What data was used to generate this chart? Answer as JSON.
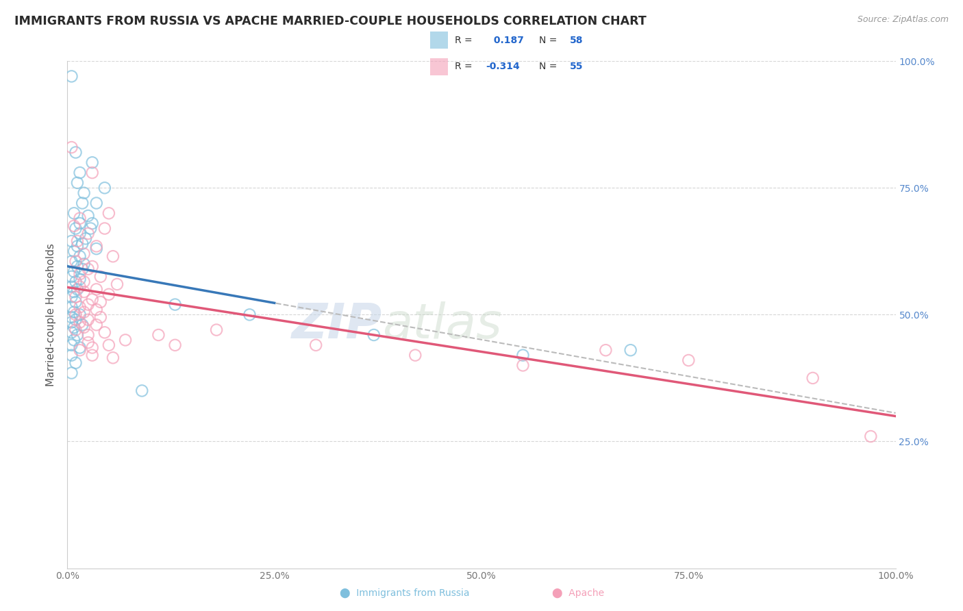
{
  "title": "IMMIGRANTS FROM RUSSIA VS APACHE MARRIED-COUPLE HOUSEHOLDS CORRELATION CHART",
  "source_text": "Source: ZipAtlas.com",
  "xlabel_bottom": "Immigrants from Russia",
  "xlabel_bottom2": "Apache",
  "ylabel": "Married-couple Households",
  "R_blue": 0.187,
  "N_blue": 58,
  "R_pink": -0.314,
  "N_pink": 55,
  "blue_color": "#7fbfdd",
  "pink_color": "#f4a0b8",
  "blue_line_color": "#3878b8",
  "pink_line_color": "#e05878",
  "blue_scatter": [
    [
      0.5,
      97.0
    ],
    [
      1.0,
      82.0
    ],
    [
      3.0,
      80.0
    ],
    [
      1.5,
      78.0
    ],
    [
      1.2,
      76.0
    ],
    [
      4.5,
      75.0
    ],
    [
      2.0,
      74.0
    ],
    [
      1.8,
      72.0
    ],
    [
      3.5,
      72.0
    ],
    [
      0.8,
      70.0
    ],
    [
      2.5,
      69.5
    ],
    [
      1.5,
      68.0
    ],
    [
      3.0,
      68.0
    ],
    [
      1.0,
      67.0
    ],
    [
      2.8,
      67.0
    ],
    [
      1.5,
      66.0
    ],
    [
      2.2,
      65.0
    ],
    [
      0.5,
      64.5
    ],
    [
      1.8,
      64.0
    ],
    [
      1.2,
      63.5
    ],
    [
      3.5,
      63.0
    ],
    [
      0.8,
      62.5
    ],
    [
      1.5,
      61.5
    ],
    [
      0.5,
      60.5
    ],
    [
      2.0,
      60.0
    ],
    [
      1.2,
      59.5
    ],
    [
      1.8,
      59.0
    ],
    [
      0.8,
      58.5
    ],
    [
      0.5,
      57.5
    ],
    [
      1.5,
      57.0
    ],
    [
      1.0,
      56.5
    ],
    [
      0.5,
      55.5
    ],
    [
      1.2,
      55.0
    ],
    [
      0.8,
      54.5
    ],
    [
      0.5,
      53.5
    ],
    [
      1.0,
      52.5
    ],
    [
      0.5,
      51.5
    ],
    [
      0.8,
      50.5
    ],
    [
      1.5,
      50.0
    ],
    [
      0.5,
      49.5
    ],
    [
      1.0,
      49.0
    ],
    [
      0.5,
      48.5
    ],
    [
      1.8,
      48.0
    ],
    [
      0.8,
      47.5
    ],
    [
      0.5,
      46.5
    ],
    [
      1.2,
      46.0
    ],
    [
      0.8,
      45.0
    ],
    [
      0.5,
      44.0
    ],
    [
      1.5,
      43.5
    ],
    [
      0.5,
      42.0
    ],
    [
      1.0,
      40.5
    ],
    [
      0.5,
      38.5
    ],
    [
      9.0,
      35.0
    ],
    [
      13.0,
      52.0
    ],
    [
      22.0,
      50.0
    ],
    [
      37.0,
      46.0
    ],
    [
      55.0,
      42.0
    ],
    [
      68.0,
      43.0
    ]
  ],
  "pink_scatter": [
    [
      0.5,
      83.0
    ],
    [
      3.0,
      78.0
    ],
    [
      5.0,
      70.0
    ],
    [
      1.5,
      69.0
    ],
    [
      0.8,
      67.5
    ],
    [
      4.5,
      67.0
    ],
    [
      2.5,
      66.0
    ],
    [
      1.2,
      64.5
    ],
    [
      3.5,
      63.5
    ],
    [
      2.0,
      62.0
    ],
    [
      5.5,
      61.5
    ],
    [
      1.0,
      60.5
    ],
    [
      3.0,
      59.5
    ],
    [
      2.5,
      59.0
    ],
    [
      1.5,
      58.0
    ],
    [
      4.0,
      57.5
    ],
    [
      2.0,
      56.5
    ],
    [
      6.0,
      56.0
    ],
    [
      1.5,
      55.5
    ],
    [
      3.5,
      55.0
    ],
    [
      2.0,
      54.5
    ],
    [
      5.0,
      54.0
    ],
    [
      1.0,
      53.5
    ],
    [
      3.0,
      53.0
    ],
    [
      4.0,
      52.5
    ],
    [
      2.5,
      52.0
    ],
    [
      1.5,
      51.5
    ],
    [
      3.5,
      51.0
    ],
    [
      2.0,
      50.5
    ],
    [
      1.0,
      50.0
    ],
    [
      4.0,
      49.5
    ],
    [
      2.5,
      49.0
    ],
    [
      1.5,
      48.5
    ],
    [
      3.5,
      48.0
    ],
    [
      2.0,
      47.5
    ],
    [
      1.0,
      47.0
    ],
    [
      4.5,
      46.5
    ],
    [
      2.5,
      46.0
    ],
    [
      7.0,
      45.0
    ],
    [
      2.5,
      44.5
    ],
    [
      5.0,
      44.0
    ],
    [
      3.0,
      43.5
    ],
    [
      1.5,
      43.0
    ],
    [
      3.0,
      42.0
    ],
    [
      5.5,
      41.5
    ],
    [
      11.0,
      46.0
    ],
    [
      13.0,
      44.0
    ],
    [
      18.0,
      47.0
    ],
    [
      30.0,
      44.0
    ],
    [
      42.0,
      42.0
    ],
    [
      55.0,
      40.0
    ],
    [
      65.0,
      43.0
    ],
    [
      75.0,
      41.0
    ],
    [
      90.0,
      37.5
    ],
    [
      97.0,
      26.0
    ]
  ],
  "watermark_zip": "ZIP",
  "watermark_atlas": "atlas",
  "xlim": [
    0,
    100
  ],
  "ylim": [
    0,
    100
  ],
  "xticks": [
    0,
    25,
    50,
    75,
    100
  ],
  "xtick_labels": [
    "0.0%",
    "25.0%",
    "50.0%",
    "75.0%",
    "100.0%"
  ],
  "ytick_labels": [
    "25.0%",
    "50.0%",
    "75.0%",
    "100.0%"
  ],
  "yticks": [
    25,
    50,
    75,
    100
  ],
  "grid_color": "#cccccc",
  "background_color": "#ffffff",
  "title_color": "#2b2b2b",
  "title_fontsize": 12.5,
  "axis_label_fontsize": 11,
  "blue_line_start_x": 0,
  "blue_line_end_x": 25,
  "blue_dash_start_x": 25,
  "blue_dash_end_x": 100,
  "pink_line_start_x": 0,
  "pink_line_end_x": 100
}
